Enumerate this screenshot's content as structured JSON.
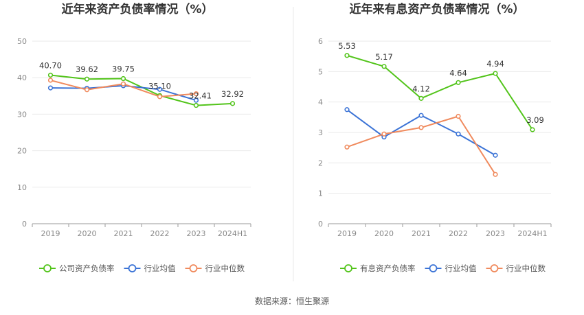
{
  "source_text": "数据来源：恒生聚源",
  "chart_data": [
    {
      "type": "line",
      "title": "近年来资产负债率情况（%）",
      "categories": [
        "2019",
        "2020",
        "2021",
        "2022",
        "2023",
        "2024H1"
      ],
      "ylim": [
        0,
        50
      ],
      "yticks": [
        "0",
        "10",
        "20",
        "30",
        "40",
        "50"
      ],
      "grid": true,
      "legend_position": "bottom",
      "series": [
        {
          "name": "公司资产负债率",
          "color": "#52c41a",
          "values": [
            40.7,
            39.62,
            39.75,
            35.1,
            32.41,
            32.92
          ],
          "labels": [
            "40.70",
            "39.62",
            "39.75",
            "35.10",
            "32.41",
            "32.92"
          ]
        },
        {
          "name": "行业均值",
          "color": "#3b73d6",
          "values": [
            37.2,
            37.1,
            37.8,
            36.8,
            33.8,
            null
          ]
        },
        {
          "name": "行业中位数",
          "color": "#f08a5d",
          "values": [
            39.3,
            36.7,
            38.3,
            34.8,
            35.6,
            null
          ]
        }
      ]
    },
    {
      "type": "line",
      "title": "近年来有息资产负债率情况（%）",
      "categories": [
        "2019",
        "2020",
        "2021",
        "2022",
        "2023",
        "2024H1"
      ],
      "ylim": [
        0,
        6
      ],
      "yticks": [
        "0",
        "1",
        "2",
        "3",
        "4",
        "5",
        "6"
      ],
      "grid": true,
      "legend_position": "bottom",
      "series": [
        {
          "name": "有息资产负债率",
          "color": "#52c41a",
          "values": [
            5.53,
            5.17,
            4.12,
            4.64,
            4.94,
            3.09
          ],
          "labels": [
            "5.53",
            "5.17",
            "4.12",
            "4.64",
            "4.94",
            "3.09"
          ]
        },
        {
          "name": "行业均值",
          "color": "#3b73d6",
          "values": [
            3.75,
            2.85,
            3.56,
            2.95,
            2.25,
            null
          ]
        },
        {
          "name": "行业中位数",
          "color": "#f08a5d",
          "values": [
            2.52,
            2.95,
            3.16,
            3.53,
            1.62,
            null
          ]
        }
      ]
    }
  ]
}
